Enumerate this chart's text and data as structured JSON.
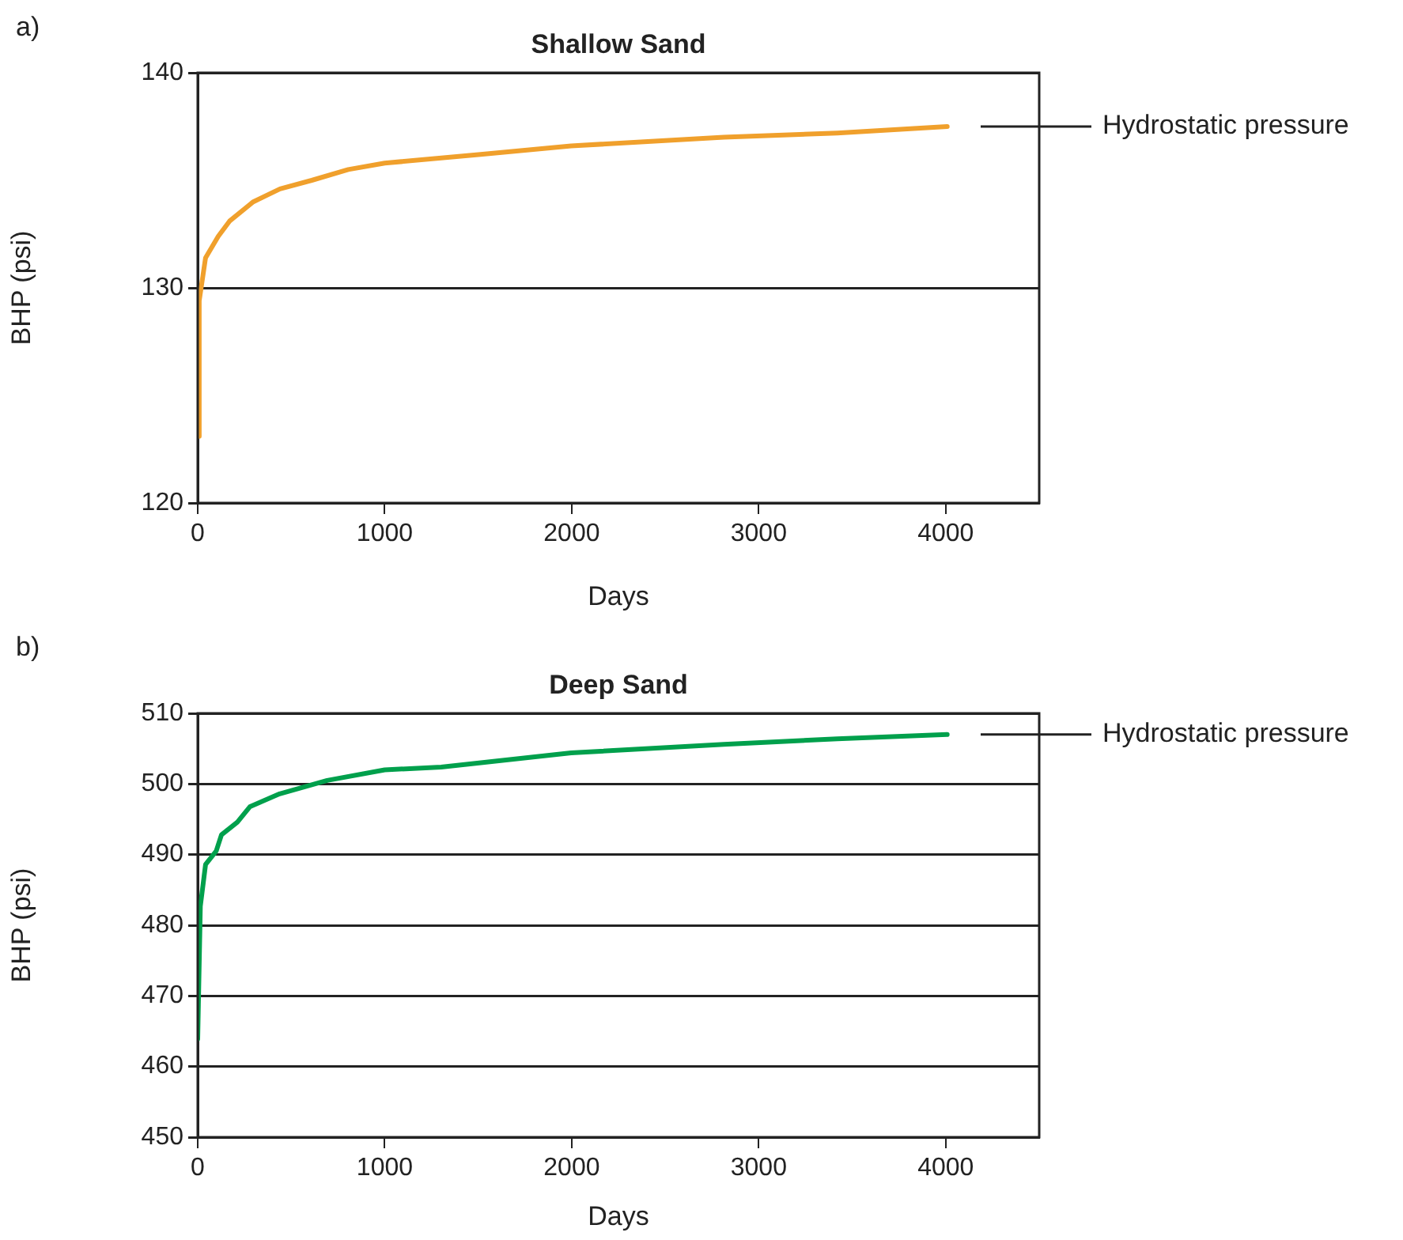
{
  "chart_data": [
    {
      "type": "line",
      "title": "Shallow Sand",
      "xlabel": "Days",
      "ylabel": "BHP (psi)",
      "xlim": [
        0,
        4500
      ],
      "xticks": [
        0,
        1000,
        2000,
        3000,
        4000
      ],
      "ylim": [
        120,
        140
      ],
      "yticks": [
        120,
        130,
        140
      ],
      "grid": "y",
      "legend": false,
      "marker": "none",
      "line_style": "solid",
      "annotations": [
        "a)"
      ],
      "ref_lines": [
        {
          "axis": "y",
          "value": 137.5,
          "label": "Hydrostatic pressure"
        }
      ],
      "series": [
        {
          "color": "#f0a02c",
          "x": [
            0,
            8,
            42,
            110,
            170,
            297,
            440,
            610,
            805,
            1000,
            1513,
            1997,
            2814,
            3420,
            4008
          ],
          "values": [
            123.1,
            129.4,
            131.4,
            132.4,
            133.1,
            134.0,
            134.6,
            135.0,
            135.5,
            135.8,
            136.2,
            136.6,
            137.0,
            137.2,
            137.5
          ]
        }
      ]
    },
    {
      "type": "line",
      "title": "Deep Sand",
      "xlabel": "Days",
      "ylabel": "BHP (psi)",
      "xlim": [
        0,
        4500
      ],
      "xticks": [
        0,
        1000,
        2000,
        3000,
        4000
      ],
      "ylim": [
        450,
        510
      ],
      "yticks": [
        450,
        460,
        470,
        480,
        490,
        500,
        510
      ],
      "grid": "y",
      "legend": false,
      "marker": "none",
      "line_style": "solid",
      "annotations": [
        "b)"
      ],
      "ref_lines": [
        {
          "axis": "y",
          "value": 507.0,
          "label": "Hydrostatic pressure"
        }
      ],
      "series": [
        {
          "color": "#00a04c",
          "x": [
            0,
            14,
            42,
            99,
            127,
            212,
            280,
            438,
            692,
            1000,
            1302,
            1997,
            2814,
            3420,
            4008
          ],
          "values": [
            463.9,
            482.7,
            488.6,
            490.5,
            492.8,
            494.6,
            496.8,
            498.6,
            500.5,
            502.0,
            502.4,
            504.4,
            505.6,
            506.4,
            507.0
          ]
        }
      ]
    }
  ]
}
